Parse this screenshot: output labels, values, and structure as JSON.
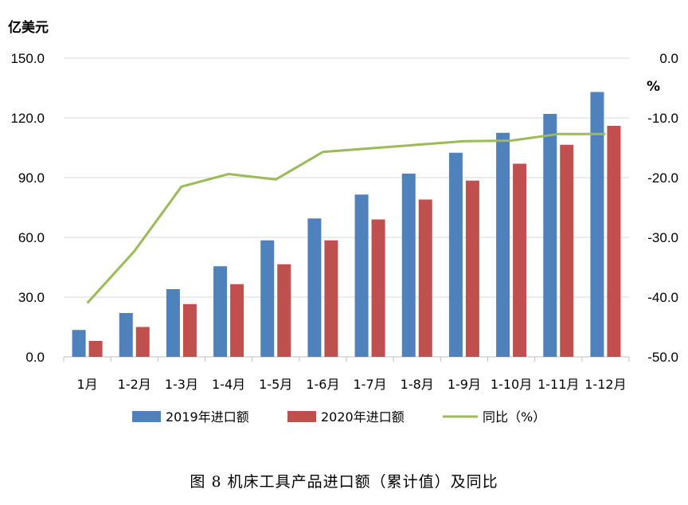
{
  "caption": "图 8  机床工具产品进口额（累计值）及同比",
  "chart_data": {
    "type": "bar",
    "categories": [
      "1月",
      "1-2月",
      "1-3月",
      "1-4月",
      "1-5月",
      "1-6月",
      "1-7月",
      "1-8月",
      "1-9月",
      "1-10月",
      "1-11月",
      "1-12月"
    ],
    "left_axis": {
      "unit": "亿美元",
      "ylim": [
        0,
        150
      ],
      "ticks": [
        "0.0",
        "30.0",
        "60.0",
        "90.0",
        "120.0",
        "150.0"
      ]
    },
    "right_axis": {
      "unit": "%",
      "ylim": [
        -50,
        0
      ],
      "ticks": [
        "-50.0",
        "-40.0",
        "-30.0",
        "-20.0",
        "-10.0",
        "0.0"
      ]
    },
    "series": [
      {
        "name": "2019年进口额",
        "type": "bar",
        "axis": "left",
        "color": "#4F81BD",
        "values": [
          13.5,
          22.0,
          34.0,
          45.5,
          58.5,
          69.5,
          81.5,
          92.0,
          102.5,
          112.5,
          122.0,
          133.0
        ]
      },
      {
        "name": "2020年进口额",
        "type": "bar",
        "axis": "left",
        "color": "#C0504D",
        "values": [
          8.0,
          15.0,
          26.5,
          36.5,
          46.5,
          58.5,
          69.0,
          79.0,
          88.5,
          97.0,
          106.5,
          116.0
        ]
      },
      {
        "name": "同比（%）",
        "type": "line",
        "axis": "right",
        "color": "#9BBB59",
        "values": [
          -41.0,
          -32.3,
          -21.5,
          -19.4,
          -20.3,
          -15.7,
          -15.1,
          -14.5,
          -13.9,
          -13.8,
          -12.7,
          -12.7
        ]
      }
    ],
    "grid": true,
    "legend_position": "bottom"
  }
}
